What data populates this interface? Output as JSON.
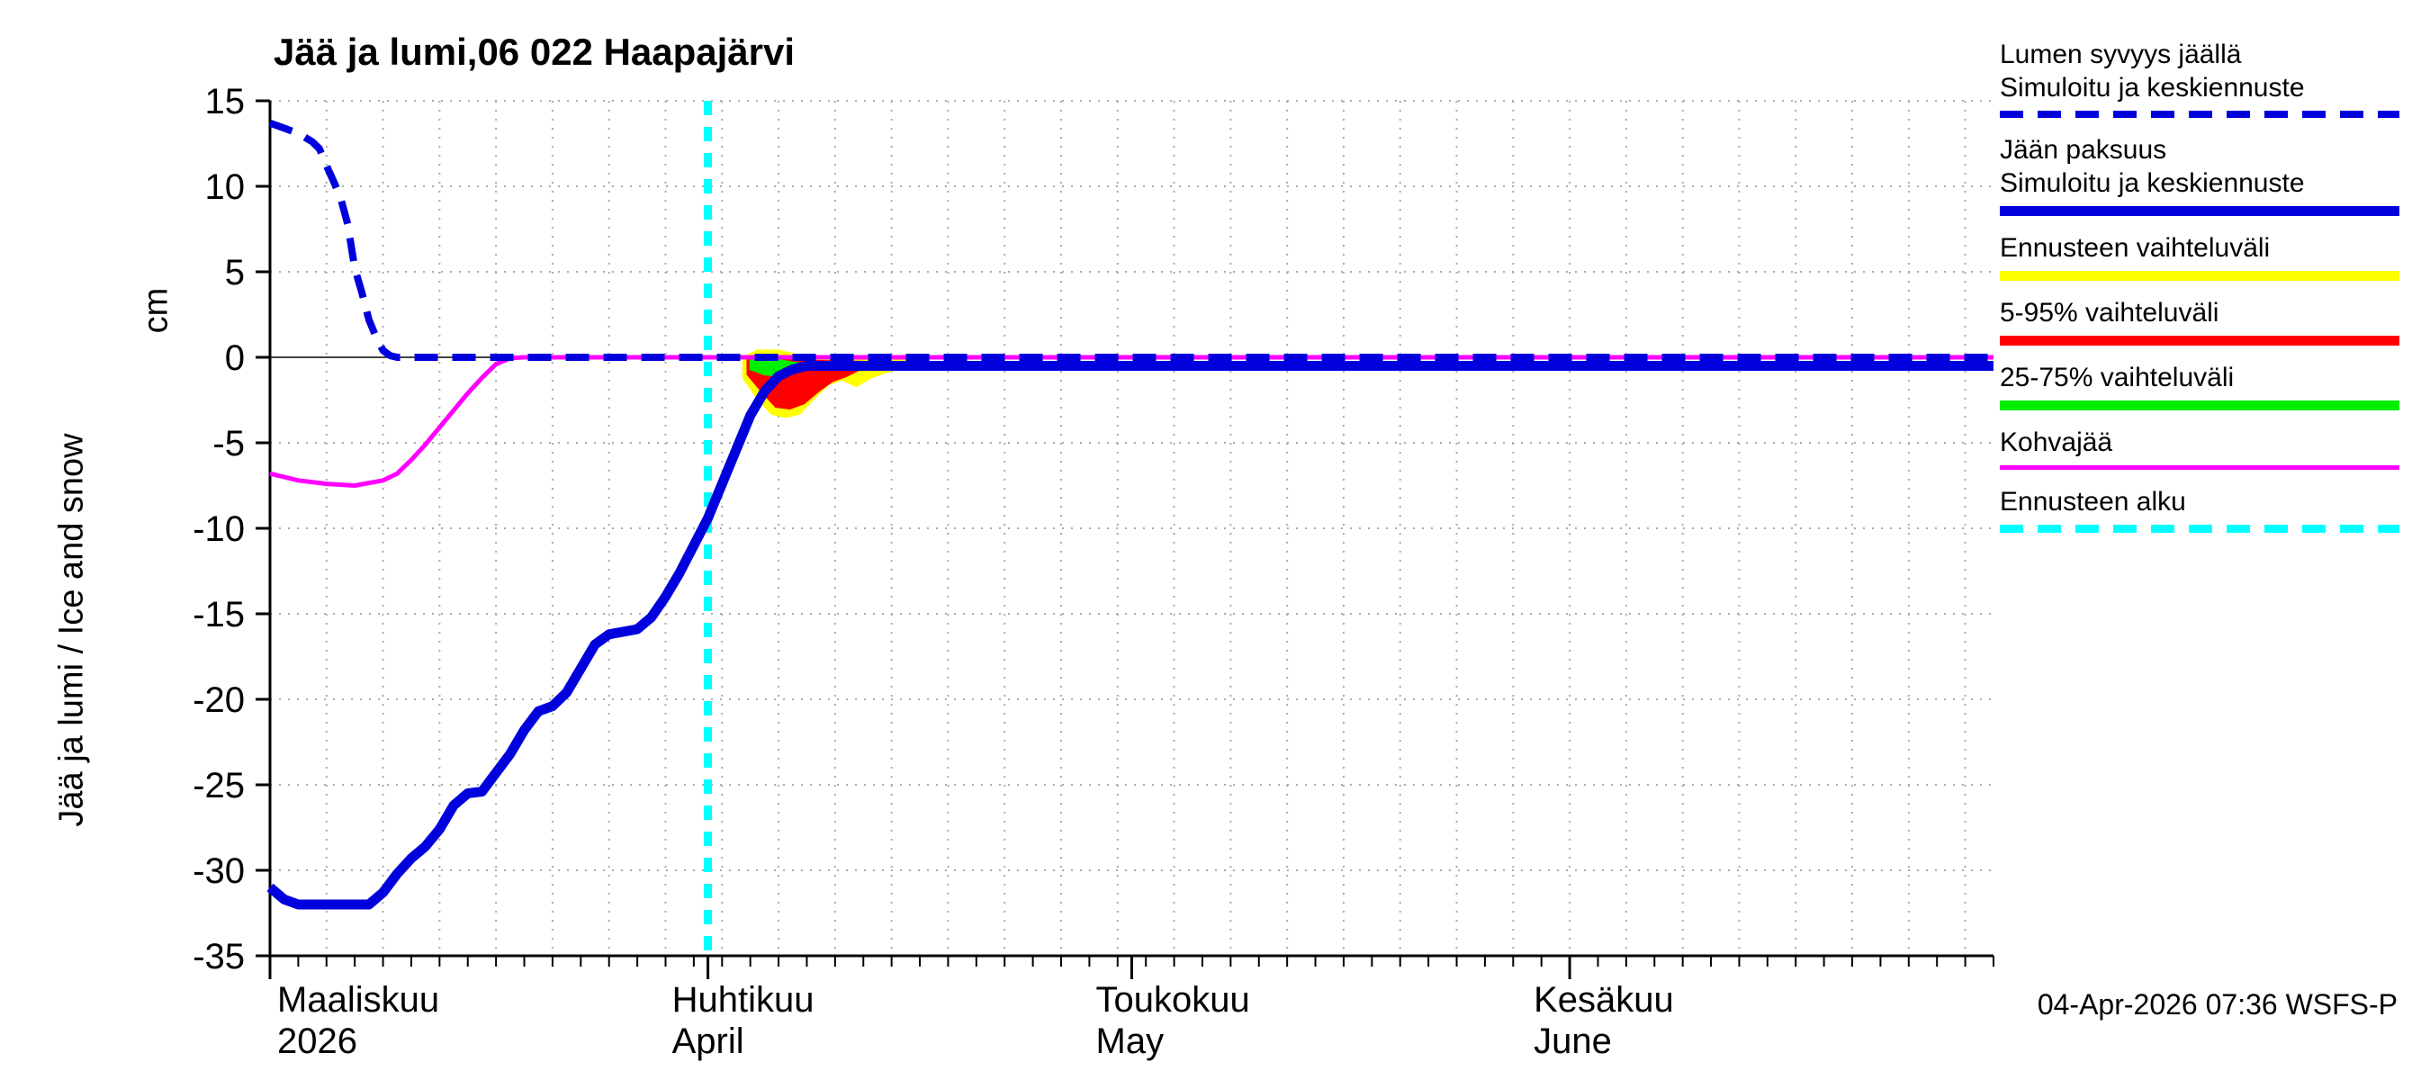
{
  "title": "Jää ja lumi,06 022 Haapajärvi",
  "footer": "04-Apr-2026 07:36 WSFS-P",
  "y_axis": {
    "label": "Jää ja lumi / Ice and snow",
    "unit": "cm",
    "ticks": [
      15,
      10,
      5,
      0,
      -5,
      -10,
      -15,
      -20,
      -25,
      -30,
      -35
    ],
    "min": -35,
    "max": 15
  },
  "x_axis": {
    "span_days": 122,
    "months": [
      {
        "name_fi": "Maaliskuu",
        "name_en": "2026",
        "day": 0
      },
      {
        "name_fi": "Huhtikuu",
        "name_en": "April",
        "day": 31
      },
      {
        "name_fi": "Toukokuu",
        "name_en": "May",
        "day": 61
      },
      {
        "name_fi": "Kesäkuu",
        "name_en": "June",
        "day": 92
      }
    ]
  },
  "legend": [
    {
      "lines": [
        "Lumen syvyys jäällä",
        "Simuloitu ja keskiennuste"
      ],
      "color": "#0000dd",
      "style": "dashed",
      "thickness": 8
    },
    {
      "lines": [
        "Jään paksuus",
        "Simuloitu ja keskiennuste"
      ],
      "color": "#0000dd",
      "style": "solid",
      "thickness": 11
    },
    {
      "lines": [
        "Ennusteen vaihteluväli"
      ],
      "color": "#ffff00",
      "style": "solid",
      "thickness": 11
    },
    {
      "lines": [
        "5-95% vaihteluväli"
      ],
      "color": "#ff0000",
      "style": "solid",
      "thickness": 11
    },
    {
      "lines": [
        "25-75% vaihteluväli"
      ],
      "color": "#00ee00",
      "style": "solid",
      "thickness": 11
    },
    {
      "lines": [
        "Kohvajää"
      ],
      "color": "#ff00ff",
      "style": "solid",
      "thickness": 5
    },
    {
      "lines": [
        "Ennusteen alku"
      ],
      "color": "#00ffff",
      "style": "dashed",
      "thickness": 9
    }
  ],
  "chart_data": {
    "type": "line",
    "title": "Jää ja lumi,06 022 Haapajärvi",
    "xlabel": "",
    "ylabel": "Jää ja lumi / Ice and snow (cm)",
    "ylim": [
      -35,
      15
    ],
    "x_unit": "day of plot, 0 = 1 March 2026",
    "forecast_start_day": 31,
    "grid": "dotted",
    "bands": [
      {
        "name": "Ennusteen vaihteluväli",
        "color": "#ffff00",
        "upper": [
          [
            33.5,
            0
          ],
          [
            34.5,
            0.4
          ],
          [
            36,
            0.4
          ],
          [
            37,
            0.2
          ],
          [
            38,
            -0.05
          ],
          [
            45,
            -0.1
          ]
        ],
        "lower": [
          [
            33.5,
            -1.2
          ],
          [
            34.5,
            -2.4
          ],
          [
            35.5,
            -3.3
          ],
          [
            36.5,
            -3.5
          ],
          [
            37.5,
            -3.3
          ],
          [
            38.5,
            -2.4
          ],
          [
            39.5,
            -1.6
          ],
          [
            40.5,
            -1.3
          ],
          [
            41.5,
            -1.7
          ],
          [
            42.5,
            -1.2
          ],
          [
            43.5,
            -0.9
          ],
          [
            45,
            -0.5
          ]
        ]
      },
      {
        "name": "5-95% vaihteluväli",
        "color": "#ff0000",
        "upper": [
          [
            33.8,
            -0.15
          ],
          [
            36,
            -0.1
          ],
          [
            38,
            -0.2
          ],
          [
            42,
            -0.25
          ]
        ],
        "lower": [
          [
            33.8,
            -1.0
          ],
          [
            34.8,
            -2.0
          ],
          [
            35.8,
            -2.9
          ],
          [
            36.8,
            -3.0
          ],
          [
            37.8,
            -2.7
          ],
          [
            38.8,
            -2.0
          ],
          [
            39.8,
            -1.4
          ],
          [
            40.8,
            -1.1
          ],
          [
            42,
            -0.6
          ]
        ]
      },
      {
        "name": "25-75% vaihteluväli",
        "color": "#00ee00",
        "upper": [
          [
            34,
            -0.2
          ],
          [
            35,
            -0.15
          ],
          [
            36,
            -0.15
          ],
          [
            37,
            -0.3
          ],
          [
            38,
            -0.4
          ]
        ],
        "lower": [
          [
            34,
            -0.7
          ],
          [
            35,
            -1.0
          ],
          [
            36,
            -1.1
          ],
          [
            37,
            -0.9
          ],
          [
            38,
            -0.55
          ]
        ]
      }
    ],
    "series": [
      {
        "name": "Jään paksuus (simuloitu ja keskiennuste)",
        "color": "#0000dd",
        "style": "solid",
        "width": 11,
        "points": [
          [
            0,
            -31
          ],
          [
            1,
            -31.7
          ],
          [
            2,
            -32
          ],
          [
            7,
            -32
          ],
          [
            8,
            -31.3
          ],
          [
            9,
            -30.2
          ],
          [
            10,
            -29.3
          ],
          [
            11,
            -28.6
          ],
          [
            12,
            -27.6
          ],
          [
            13,
            -26.2
          ],
          [
            14,
            -25.5
          ],
          [
            15,
            -25.4
          ],
          [
            16,
            -24.3
          ],
          [
            17,
            -23.2
          ],
          [
            18,
            -21.8
          ],
          [
            19,
            -20.7
          ],
          [
            20,
            -20.4
          ],
          [
            21,
            -19.6
          ],
          [
            22,
            -18.2
          ],
          [
            23,
            -16.8
          ],
          [
            24,
            -16.2
          ],
          [
            26,
            -15.9
          ],
          [
            27,
            -15.2
          ],
          [
            28,
            -14
          ],
          [
            29,
            -12.6
          ],
          [
            30,
            -11
          ],
          [
            31,
            -9.4
          ],
          [
            32,
            -7.4
          ],
          [
            33,
            -5.4
          ],
          [
            34,
            -3.4
          ],
          [
            35,
            -2
          ],
          [
            36,
            -1.1
          ],
          [
            37,
            -0.7
          ],
          [
            38,
            -0.5
          ],
          [
            122,
            -0.5
          ]
        ]
      },
      {
        "name": "Kohvajää",
        "color": "#ff00ff",
        "style": "solid",
        "width": 5,
        "points": [
          [
            0,
            -6.8
          ],
          [
            2,
            -7.2
          ],
          [
            4,
            -7.4
          ],
          [
            6,
            -7.5
          ],
          [
            8,
            -7.2
          ],
          [
            9,
            -6.8
          ],
          [
            10,
            -6
          ],
          [
            11,
            -5.1
          ],
          [
            12,
            -4.1
          ],
          [
            13,
            -3.1
          ],
          [
            14,
            -2.1
          ],
          [
            15,
            -1.2
          ],
          [
            16,
            -0.4
          ],
          [
            17,
            -0.05
          ],
          [
            18,
            0
          ],
          [
            122,
            0
          ]
        ]
      },
      {
        "name": "Lumen syvyys jäällä (simuloitu ja keskiennuste)",
        "color": "#0000dd",
        "style": "dashed",
        "width": 8,
        "points": [
          [
            0,
            13.7
          ],
          [
            1,
            13.4
          ],
          [
            2,
            13.1
          ],
          [
            3,
            12.6
          ],
          [
            3.5,
            12.2
          ],
          [
            4,
            11.2
          ],
          [
            4.5,
            10.3
          ],
          [
            5,
            9.3
          ],
          [
            5.5,
            7.8
          ],
          [
            6,
            5.2
          ],
          [
            6.5,
            3.8
          ],
          [
            7,
            2.2
          ],
          [
            7.5,
            1.2
          ],
          [
            8,
            0.4
          ],
          [
            8.5,
            0.1
          ],
          [
            9,
            0
          ],
          [
            122,
            0
          ]
        ]
      }
    ]
  }
}
